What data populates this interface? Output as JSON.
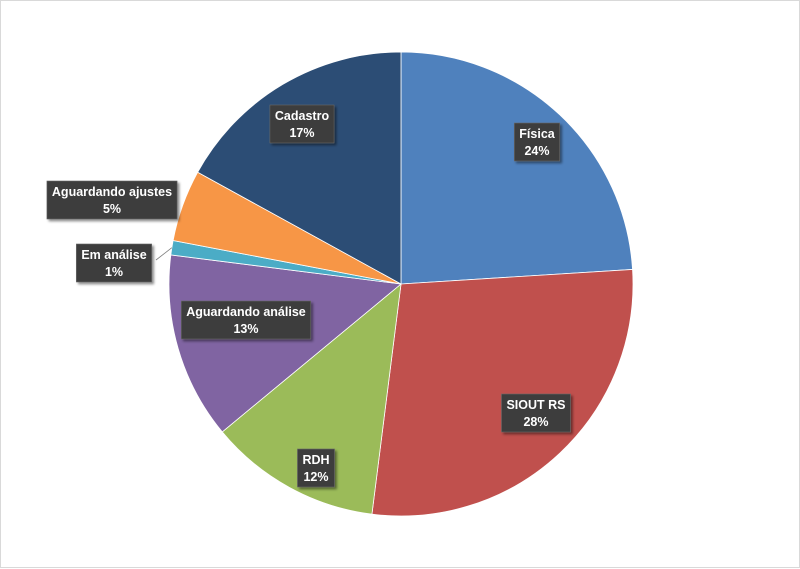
{
  "chart_data": {
    "type": "pie",
    "categories": [
      "Física",
      "SIOUT RS",
      "RDH",
      "Aguardando análise",
      "Em análise",
      "Aguardando ajustes",
      "Cadastro"
    ],
    "values": [
      24,
      28,
      12,
      13,
      1,
      5,
      17
    ],
    "value_labels": [
      "24%",
      "28%",
      "12%",
      "13%",
      "1%",
      "5%",
      "17%"
    ],
    "colors": [
      "#4F81BD",
      "#C0504D",
      "#9BBB59",
      "#8064A2",
      "#4BACC6",
      "#F79646",
      "#2C4D75"
    ],
    "start": "12 o'clock",
    "direction": "clockwise",
    "legend": "none",
    "title": ""
  }
}
